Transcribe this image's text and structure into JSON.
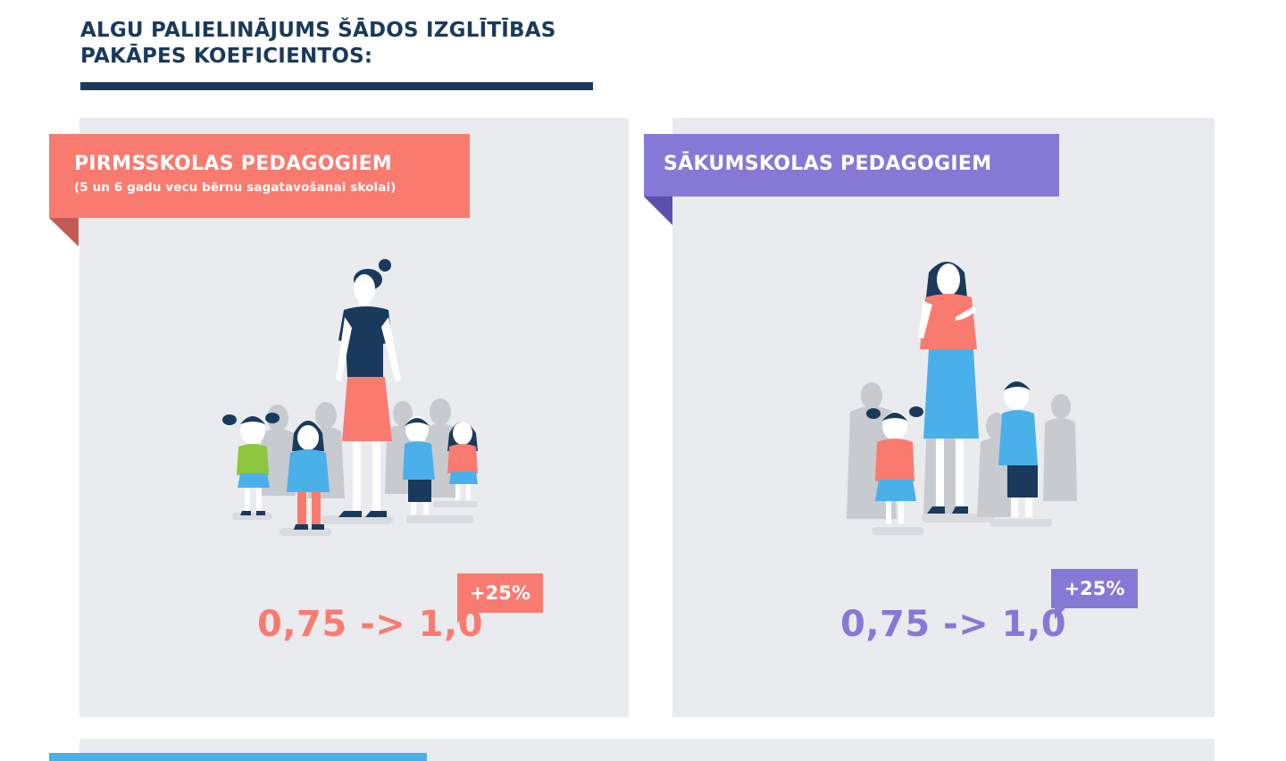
{
  "header": {
    "title_line1": "ALGU PALIELINĀJUMS ŠĀDOS IZGLĪTĪBAS",
    "title_line2": "PAKĀPES KOEFICIENTOS:"
  },
  "cards": [
    {
      "title": "PIRMSSKOLAS PEDAGOGIEM",
      "subtitle": "(5 un 6 gadu vecu bērnu sagatavošanai skolai)",
      "coefficient_change": "0,75 -> 1,0",
      "increase": "+25%",
      "accent_color": "#f97b70",
      "illustration": "teacher-with-preschool-children-illustration"
    },
    {
      "title": "SĀKUMSKOLAS PEDAGOGIEM",
      "coefficient_change": "0,75 -> 1,0",
      "increase": "+25%",
      "accent_color": "#8679d5",
      "illustration": "teacher-with-primary-school-children-illustration"
    }
  ],
  "colors": {
    "navy": "#1a3a5c",
    "card_bg": "#e9ebee",
    "coral": "#f97b70",
    "purple": "#8679d5",
    "blue": "#4ab0ea"
  }
}
